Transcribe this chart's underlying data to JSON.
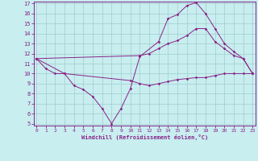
{
  "xlabel": "Windchill (Refroidissement éolien,°C)",
  "bg_color": "#c8eef0",
  "grid_color": "#a0cccc",
  "line_color": "#882288",
  "spine_color": "#882288",
  "xmin": 0,
  "xmax": 23,
  "ymin": 5,
  "ymax": 17,
  "series1": [
    [
      0,
      11.5
    ],
    [
      1,
      10.5
    ],
    [
      2,
      10.0
    ],
    [
      3,
      10.0
    ],
    [
      4,
      8.8
    ],
    [
      5,
      8.4
    ],
    [
      6,
      7.7
    ],
    [
      7,
      6.5
    ],
    [
      8,
      5.0
    ],
    [
      9,
      6.5
    ],
    [
      10,
      8.5
    ],
    [
      11,
      11.7
    ],
    [
      13,
      13.2
    ],
    [
      14,
      15.5
    ],
    [
      15,
      15.9
    ],
    [
      16,
      16.8
    ],
    [
      17,
      17.1
    ],
    [
      18,
      16.0
    ],
    [
      19,
      14.5
    ],
    [
      20,
      13.0
    ],
    [
      21,
      12.2
    ],
    [
      22,
      11.5
    ],
    [
      23,
      10.0
    ]
  ],
  "series2": [
    [
      0,
      11.5
    ],
    [
      3,
      10.0
    ],
    [
      10,
      9.3
    ],
    [
      11,
      9.0
    ],
    [
      12,
      8.8
    ],
    [
      13,
      9.0
    ],
    [
      14,
      9.2
    ],
    [
      15,
      9.4
    ],
    [
      16,
      9.5
    ],
    [
      17,
      9.6
    ],
    [
      18,
      9.6
    ],
    [
      19,
      9.8
    ],
    [
      20,
      10.0
    ],
    [
      21,
      10.0
    ],
    [
      22,
      10.0
    ],
    [
      23,
      10.0
    ]
  ],
  "series3": [
    [
      0,
      11.5
    ],
    [
      11,
      11.8
    ],
    [
      12,
      12.0
    ],
    [
      13,
      12.5
    ],
    [
      14,
      13.0
    ],
    [
      15,
      13.3
    ],
    [
      16,
      13.8
    ],
    [
      17,
      14.5
    ],
    [
      18,
      14.5
    ],
    [
      19,
      13.2
    ],
    [
      20,
      12.5
    ],
    [
      21,
      11.8
    ],
    [
      22,
      11.5
    ],
    [
      23,
      10.0
    ]
  ]
}
